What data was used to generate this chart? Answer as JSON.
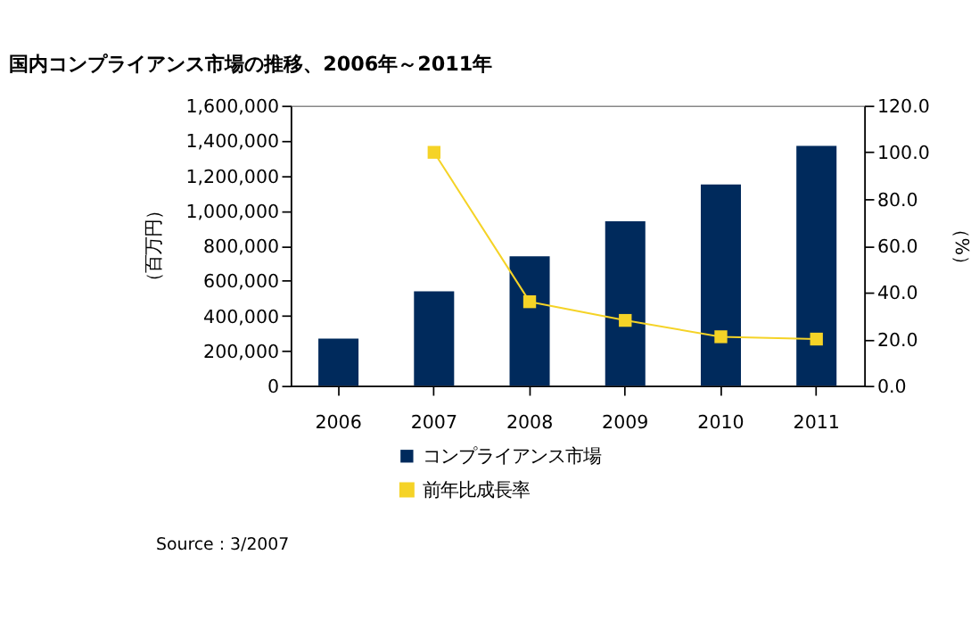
{
  "chart_data": {
    "type": "bar",
    "title": "国内コンプライアンス市場の推移、2006年～2011年",
    "ylabel": "（百万円）",
    "y2label": "（%）",
    "categories": [
      "2006",
      "2007",
      "2008",
      "2009",
      "2010",
      "2011"
    ],
    "series": [
      {
        "name": "コンプライアンス市場",
        "color": "#002a5c",
        "values": [
          270000,
          540000,
          740000,
          940000,
          1150000,
          1370000
        ]
      },
      {
        "name": "前年比成長率",
        "type": "line",
        "axis": "y2",
        "color": "#f5d327",
        "values": [
          null,
          100,
          36,
          28,
          21,
          20
        ]
      }
    ],
    "ylim": [
      0,
      1600000
    ],
    "yticks": [
      {
        "value": 0,
        "label": "0"
      },
      {
        "value": 200000,
        "label": "200,000"
      },
      {
        "value": 400000,
        "label": "400,000"
      },
      {
        "value": 600000,
        "label": "600,000"
      },
      {
        "value": 800000,
        "label": "800,000"
      },
      {
        "value": 1000000,
        "label": "1,000,000"
      },
      {
        "value": 1200000,
        "label": "1,200,000"
      },
      {
        "value": 1400000,
        "label": "1,400,000"
      },
      {
        "value": 1600000,
        "label": "1,600,000"
      }
    ],
    "y2lim": [
      0,
      120
    ],
    "y2ticks": [
      {
        "value": 0,
        "label": "0.0"
      },
      {
        "value": 20,
        "label": "20.0"
      },
      {
        "value": 40,
        "label": "40.0"
      },
      {
        "value": 60,
        "label": "60.0"
      },
      {
        "value": 80,
        "label": "80.0"
      },
      {
        "value": 100,
        "label": "100.0"
      },
      {
        "value": 120,
        "label": "120.0"
      }
    ],
    "legend": "bottom",
    "marker": "square",
    "grid": false,
    "annotations": [
      "Source : 3/2007"
    ]
  }
}
